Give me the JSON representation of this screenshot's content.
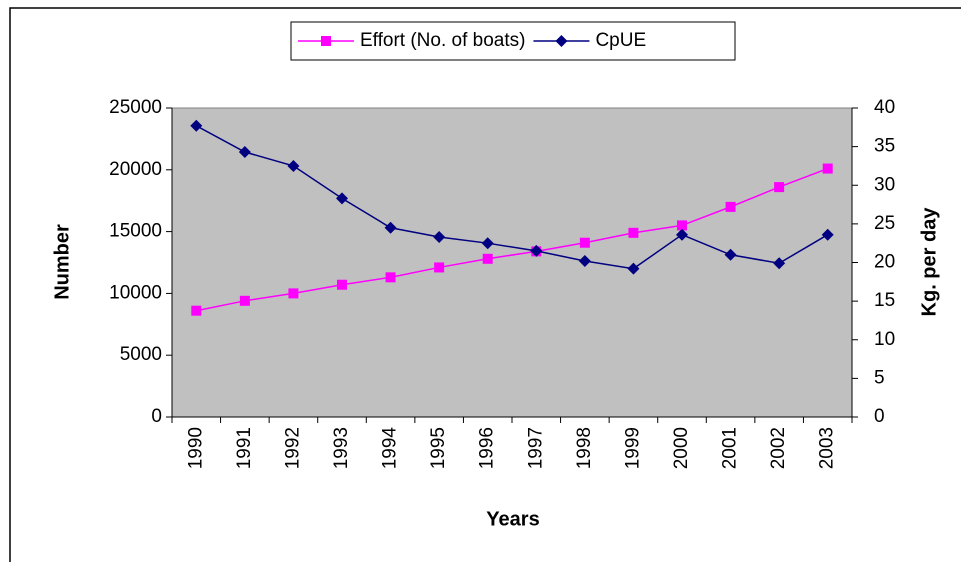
{
  "chart_data": {
    "type": "line",
    "x_label": "Years",
    "y_label": "Number",
    "y2_label": "Kg. per day",
    "categories": [
      "1990",
      "1991",
      "1992",
      "1993",
      "1994",
      "1995",
      "1996",
      "1997",
      "1998",
      "1999",
      "2000",
      "2001",
      "2002",
      "2003"
    ],
    "series": [
      {
        "name": "Effort (No. of boats)",
        "color": "#ff00ff",
        "marker": "square",
        "axis": "y",
        "values": [
          8600,
          9400,
          10000,
          10700,
          11300,
          12100,
          12800,
          13400,
          14100,
          14900,
          15500,
          17000,
          18600,
          20100
        ]
      },
      {
        "name": "CpUE",
        "color": "#000080",
        "marker": "diamond",
        "axis": "y2",
        "values": [
          37.7,
          34.3,
          32.5,
          28.3,
          24.5,
          23.3,
          22.5,
          21.5,
          20.2,
          19.2,
          23.6,
          21.0,
          19.9,
          23.6
        ]
      }
    ],
    "ylim": [
      0,
      25000
    ],
    "yticks": [
      0,
      5000,
      10000,
      15000,
      20000,
      25000
    ],
    "y2lim": [
      0,
      40
    ],
    "y2ticks": [
      0,
      5,
      10,
      15,
      20,
      25,
      30,
      35,
      40
    ],
    "plot_background": "#c0c0c0",
    "legend": "top"
  }
}
